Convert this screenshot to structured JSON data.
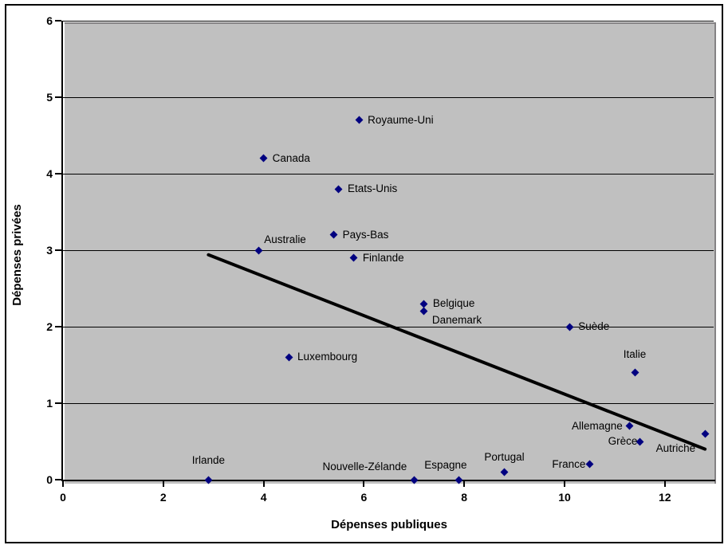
{
  "chart_data": {
    "type": "scatter",
    "title": "",
    "xlabel": "Dépenses publiques",
    "ylabel": "Dépenses privées",
    "xlim": [
      0,
      13
    ],
    "ylim": [
      0,
      6
    ],
    "x_ticks": [
      0,
      2,
      4,
      6,
      8,
      10,
      12
    ],
    "y_ticks": [
      0,
      1,
      2,
      3,
      4,
      5,
      6
    ],
    "grid": "horizontal-only",
    "legend": "none",
    "plot_bg_color": "#c0c0c0",
    "marker_color": "#000080",
    "trendline_color": "#000000",
    "points": [
      {
        "label": "Royaume-Uni",
        "x": 5.9,
        "y": 4.7,
        "pos": "right"
      },
      {
        "label": "Canada",
        "x": 4.0,
        "y": 4.2,
        "pos": "right"
      },
      {
        "label": "Etats-Unis",
        "x": 5.5,
        "y": 3.8,
        "pos": "right"
      },
      {
        "label": "Pays-Bas",
        "x": 5.4,
        "y": 3.2,
        "pos": "right"
      },
      {
        "label": "Australie",
        "x": 3.9,
        "y": 3.0,
        "pos": "above-right",
        "dx": 3
      },
      {
        "label": "Finlande",
        "x": 5.8,
        "y": 2.9,
        "pos": "right"
      },
      {
        "label": "Belgique",
        "x": 7.2,
        "y": 2.3,
        "pos": "right"
      },
      {
        "label": "Danemark",
        "x": 7.2,
        "y": 2.2,
        "pos": "below-right"
      },
      {
        "label": "Suède",
        "x": 10.1,
        "y": 2.0,
        "pos": "right"
      },
      {
        "label": "Italie",
        "x": 11.4,
        "y": 1.4,
        "pos": "above",
        "dy": -2
      },
      {
        "label": "Luxembourg",
        "x": 4.5,
        "y": 1.6,
        "pos": "right"
      },
      {
        "label": "Allemagne",
        "x": 11.3,
        "y": 0.7,
        "pos": "left"
      },
      {
        "label": "Grèce",
        "x": 11.5,
        "y": 0.5,
        "pos": "left",
        "dx": 6
      },
      {
        "label": "Autriche",
        "x": 12.8,
        "y": 0.6,
        "pos": "below-left"
      },
      {
        "label": "France",
        "x": 10.5,
        "y": 0.2,
        "pos": "left",
        "dx": 4
      },
      {
        "label": "Portugal",
        "x": 8.8,
        "y": 0.1,
        "pos": "above",
        "dy": 3
      },
      {
        "label": "Espagne",
        "x": 7.9,
        "y": 0.0,
        "pos": "above",
        "dx": -17,
        "dy": 3
      },
      {
        "label": "Nouvelle-Zélande",
        "x": 7.0,
        "y": 0.0,
        "pos": "left",
        "dy": -16
      },
      {
        "label": "Irlande",
        "x": 2.9,
        "y": 0.0,
        "pos": "above",
        "dy": -3
      }
    ],
    "trendline": {
      "x1": 2.9,
      "y1": 2.94,
      "x2": 12.8,
      "y2": 0.4
    }
  }
}
